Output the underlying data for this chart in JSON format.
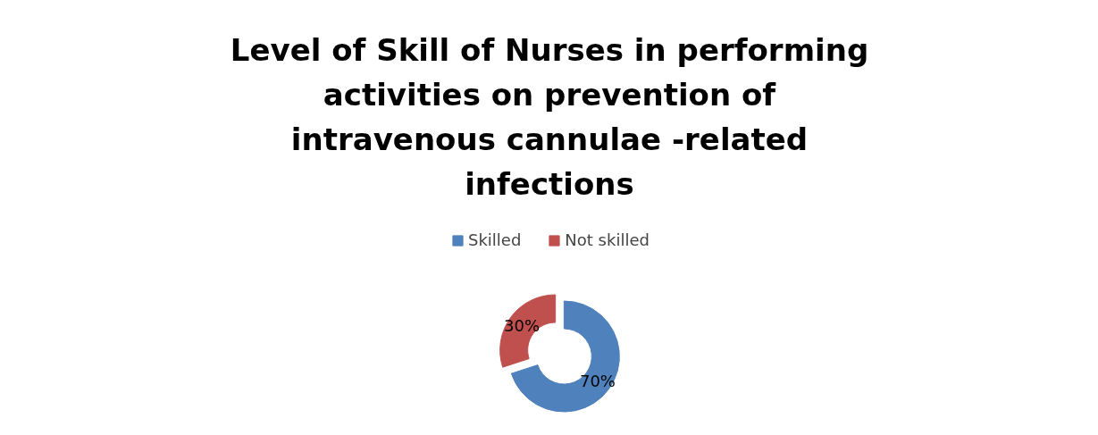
{
  "chart_data": {
    "type": "donut",
    "title": "Level of Skill of Nurses in performing activities on prevention of intravenous cannulae -related infections",
    "categories": [
      "Skilled",
      "Not skilled"
    ],
    "values": [
      70,
      30
    ],
    "colors": [
      "#4f81bd",
      "#c0504d"
    ],
    "value_labels": [
      "70%",
      "30%"
    ],
    "legend": "top"
  }
}
